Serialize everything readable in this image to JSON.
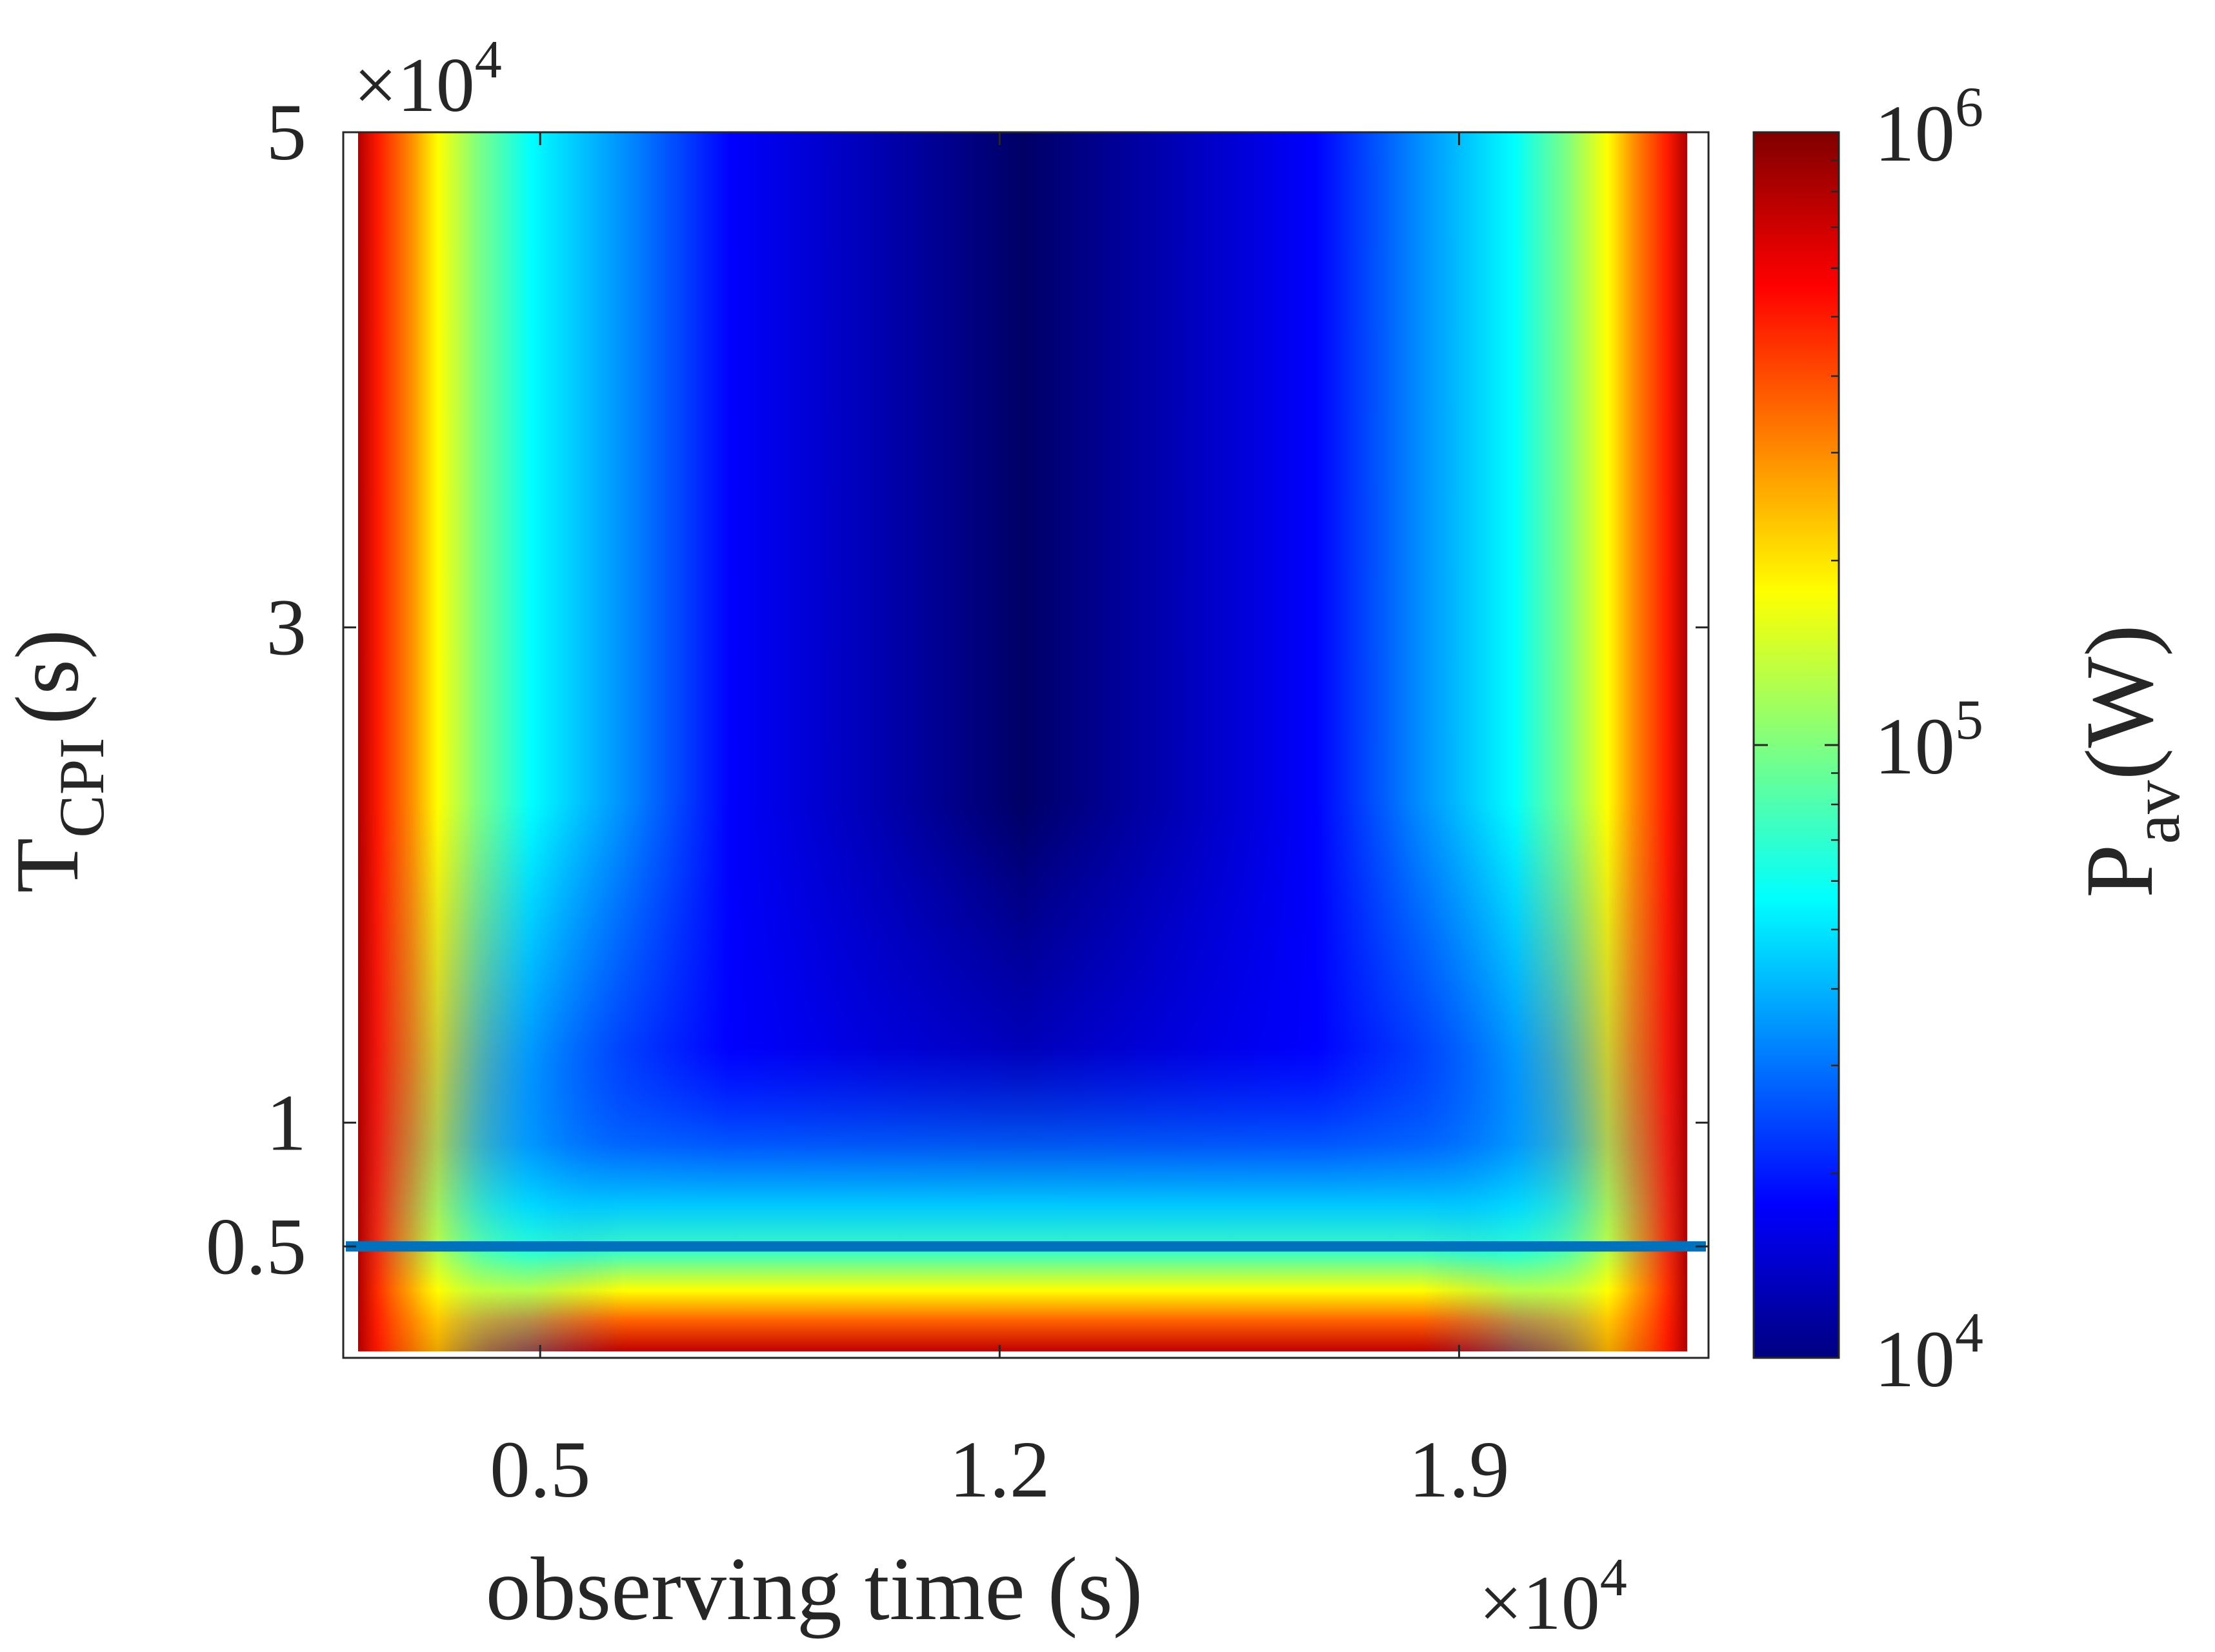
{
  "chart_data": {
    "type": "heatmap",
    "title": "",
    "xlabel": "observing time (s)",
    "x_multiplier": {
      "base": "10",
      "exponent": "4"
    },
    "x_ticks": [
      0.5,
      1.2,
      1.9
    ],
    "x_tick_labels": [
      "0.5",
      "1.2",
      "1.9"
    ],
    "xlim": [
      0.2,
      2.28
    ],
    "ylabel_main": "T",
    "ylabel_sub": "CPI",
    "ylabel_unit": "(s)",
    "y_multiplier": {
      "base": "10",
      "exponent": "4"
    },
    "y_ticks": [
      0.5,
      1,
      3,
      5
    ],
    "y_tick_labels": [
      "0.5",
      "1",
      "3",
      "5"
    ],
    "ylim": [
      0.05,
      5
    ],
    "colorbar": {
      "label_main": "P",
      "label_sub": "av",
      "label_unit": "(W)",
      "scale": "log",
      "range": [
        10000,
        1000000
      ],
      "ticks": [
        {
          "value": 10000,
          "base": "10",
          "exponent": "4"
        },
        {
          "value": 100000,
          "base": "10",
          "exponent": "5"
        },
        {
          "value": 1000000,
          "base": "10",
          "exponent": "6"
        }
      ],
      "colormap": "jet"
    },
    "reference_line": {
      "y": 0.5,
      "color": "#0072BD"
    },
    "grid": false
  }
}
